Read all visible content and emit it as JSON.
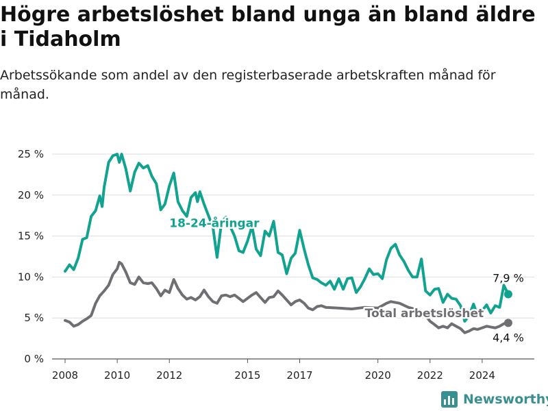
{
  "title": "Högre arbetslöshet bland unga än bland äldre i Tidaholm",
  "subtitle": "Arbetssökande som andel av den registerbaserade arbetskraften månad för månad.",
  "brand": {
    "name": "Newsworthy",
    "icon": "newsworthy-logo-icon",
    "color": "#3a8f8f"
  },
  "chart_data": {
    "type": "line",
    "ylim": [
      0,
      25
    ],
    "yticks": [
      0,
      5,
      10,
      15,
      20,
      25
    ],
    "ytick_labels": [
      "0 %",
      "5 %",
      "10 %",
      "15 %",
      "20 %",
      "25 %"
    ],
    "xticks": [
      2008,
      2010,
      2012,
      2015,
      2017,
      2020,
      2022,
      2024
    ],
    "xtick_labels": [
      "2008",
      "2010",
      "2012",
      "2015",
      "2017",
      "2020",
      "2022",
      "2024"
    ],
    "grid": "horizontal",
    "series": [
      {
        "name": "18-24-åringar",
        "color": "#12a290",
        "end_label": "7,9 %",
        "points": [
          [
            2008.0,
            10.7
          ],
          [
            2008.17,
            11.5
          ],
          [
            2008.33,
            10.9
          ],
          [
            2008.5,
            12.3
          ],
          [
            2008.67,
            14.6
          ],
          [
            2008.83,
            14.8
          ],
          [
            2009.0,
            17.4
          ],
          [
            2009.17,
            18.1
          ],
          [
            2009.33,
            19.9
          ],
          [
            2009.42,
            18.6
          ],
          [
            2009.5,
            21.0
          ],
          [
            2009.67,
            24.0
          ],
          [
            2009.83,
            24.8
          ],
          [
            2010.0,
            25.0
          ],
          [
            2010.08,
            24.0
          ],
          [
            2010.17,
            25.0
          ],
          [
            2010.33,
            23.2
          ],
          [
            2010.5,
            20.5
          ],
          [
            2010.67,
            22.8
          ],
          [
            2010.83,
            23.9
          ],
          [
            2011.0,
            23.3
          ],
          [
            2011.17,
            23.6
          ],
          [
            2011.33,
            22.3
          ],
          [
            2011.5,
            21.4
          ],
          [
            2011.67,
            18.2
          ],
          [
            2011.83,
            18.9
          ],
          [
            2012.0,
            21.1
          ],
          [
            2012.17,
            22.7
          ],
          [
            2012.33,
            19.2
          ],
          [
            2012.5,
            18.1
          ],
          [
            2012.67,
            17.4
          ],
          [
            2012.83,
            19.7
          ],
          [
            2013.0,
            20.3
          ],
          [
            2013.08,
            19.2
          ],
          [
            2013.17,
            20.4
          ],
          [
            2013.33,
            18.9
          ],
          [
            2013.5,
            17.5
          ],
          [
            2013.67,
            16.1
          ],
          [
            2013.83,
            12.4
          ],
          [
            2014.0,
            16.7
          ],
          [
            2014.17,
            17.3
          ],
          [
            2014.33,
            16.2
          ],
          [
            2014.5,
            15.0
          ],
          [
            2014.67,
            13.2
          ],
          [
            2014.83,
            13.0
          ],
          [
            2015.0,
            14.4
          ],
          [
            2015.17,
            16.2
          ],
          [
            2015.33,
            13.4
          ],
          [
            2015.5,
            12.6
          ],
          [
            2015.67,
            15.6
          ],
          [
            2015.83,
            15.0
          ],
          [
            2016.0,
            16.8
          ],
          [
            2016.17,
            13.0
          ],
          [
            2016.33,
            12.7
          ],
          [
            2016.5,
            10.4
          ],
          [
            2016.67,
            12.3
          ],
          [
            2016.83,
            12.9
          ],
          [
            2017.0,
            15.7
          ],
          [
            2017.17,
            13.4
          ],
          [
            2017.33,
            11.5
          ],
          [
            2017.5,
            9.9
          ],
          [
            2017.67,
            9.7
          ],
          [
            2017.83,
            9.3
          ],
          [
            2018.0,
            9.0
          ],
          [
            2018.17,
            9.5
          ],
          [
            2018.33,
            8.5
          ],
          [
            2018.5,
            9.8
          ],
          [
            2018.67,
            8.5
          ],
          [
            2018.83,
            9.8
          ],
          [
            2019.0,
            9.9
          ],
          [
            2019.17,
            8.1
          ],
          [
            2019.33,
            8.8
          ],
          [
            2019.5,
            9.8
          ],
          [
            2019.67,
            11.0
          ],
          [
            2019.83,
            10.3
          ],
          [
            2020.0,
            10.4
          ],
          [
            2020.17,
            9.8
          ],
          [
            2020.33,
            12.1
          ],
          [
            2020.5,
            13.5
          ],
          [
            2020.67,
            14.0
          ],
          [
            2020.83,
            12.7
          ],
          [
            2021.0,
            11.9
          ],
          [
            2021.17,
            10.8
          ],
          [
            2021.33,
            10.0
          ],
          [
            2021.5,
            10.0
          ],
          [
            2021.67,
            12.2
          ],
          [
            2021.83,
            8.3
          ],
          [
            2022.0,
            7.8
          ],
          [
            2022.17,
            8.5
          ],
          [
            2022.33,
            8.6
          ],
          [
            2022.5,
            6.9
          ],
          [
            2022.67,
            7.9
          ],
          [
            2022.83,
            7.4
          ],
          [
            2023.0,
            7.3
          ],
          [
            2023.17,
            6.5
          ],
          [
            2023.33,
            4.6
          ],
          [
            2023.5,
            5.3
          ],
          [
            2023.67,
            6.7
          ],
          [
            2023.83,
            5.2
          ],
          [
            2024.0,
            5.9
          ],
          [
            2024.17,
            6.6
          ],
          [
            2024.33,
            5.6
          ],
          [
            2024.5,
            6.5
          ],
          [
            2024.67,
            6.3
          ],
          [
            2024.83,
            9.0
          ],
          [
            2025.0,
            7.9
          ]
        ]
      },
      {
        "name": "Total arbetslöshet",
        "color": "#6e6e73",
        "end_label": "4,4 %",
        "points": [
          [
            2008.0,
            4.7
          ],
          [
            2008.17,
            4.5
          ],
          [
            2008.33,
            4.0
          ],
          [
            2008.5,
            4.2
          ],
          [
            2008.67,
            4.6
          ],
          [
            2008.83,
            4.9
          ],
          [
            2009.0,
            5.3
          ],
          [
            2009.17,
            6.8
          ],
          [
            2009.33,
            7.7
          ],
          [
            2009.5,
            8.3
          ],
          [
            2009.67,
            9.0
          ],
          [
            2009.83,
            10.3
          ],
          [
            2010.0,
            11.0
          ],
          [
            2010.08,
            11.8
          ],
          [
            2010.17,
            11.6
          ],
          [
            2010.33,
            10.6
          ],
          [
            2010.5,
            9.3
          ],
          [
            2010.67,
            9.1
          ],
          [
            2010.83,
            10.0
          ],
          [
            2011.0,
            9.3
          ],
          [
            2011.17,
            9.2
          ],
          [
            2011.33,
            9.3
          ],
          [
            2011.5,
            8.6
          ],
          [
            2011.67,
            7.7
          ],
          [
            2011.83,
            8.4
          ],
          [
            2012.0,
            8.1
          ],
          [
            2012.17,
            9.7
          ],
          [
            2012.33,
            8.6
          ],
          [
            2012.5,
            7.8
          ],
          [
            2012.67,
            7.3
          ],
          [
            2012.83,
            7.5
          ],
          [
            2013.0,
            7.2
          ],
          [
            2013.17,
            7.6
          ],
          [
            2013.33,
            8.4
          ],
          [
            2013.5,
            7.6
          ],
          [
            2013.67,
            7.0
          ],
          [
            2013.83,
            6.8
          ],
          [
            2014.0,
            7.7
          ],
          [
            2014.17,
            7.8
          ],
          [
            2014.33,
            7.6
          ],
          [
            2014.5,
            7.8
          ],
          [
            2014.67,
            7.4
          ],
          [
            2014.83,
            7.0
          ],
          [
            2015.0,
            7.4
          ],
          [
            2015.17,
            7.8
          ],
          [
            2015.33,
            8.1
          ],
          [
            2015.5,
            7.5
          ],
          [
            2015.67,
            6.9
          ],
          [
            2015.83,
            7.5
          ],
          [
            2016.0,
            7.6
          ],
          [
            2016.17,
            8.3
          ],
          [
            2016.33,
            7.8
          ],
          [
            2016.5,
            7.2
          ],
          [
            2016.67,
            6.6
          ],
          [
            2016.83,
            7.0
          ],
          [
            2017.0,
            7.2
          ],
          [
            2017.17,
            6.8
          ],
          [
            2017.33,
            6.2
          ],
          [
            2017.5,
            6.0
          ],
          [
            2017.67,
            6.4
          ],
          [
            2017.83,
            6.5
          ],
          [
            2018.0,
            6.3
          ],
          [
            2018.5,
            6.2
          ],
          [
            2019.0,
            6.1
          ],
          [
            2019.5,
            6.3
          ],
          [
            2020.0,
            6.2
          ],
          [
            2020.33,
            6.8
          ],
          [
            2020.5,
            7.0
          ],
          [
            2020.83,
            6.8
          ],
          [
            2021.17,
            6.3
          ],
          [
            2021.5,
            6.0
          ],
          [
            2021.83,
            5.3
          ],
          [
            2022.0,
            4.6
          ],
          [
            2022.17,
            4.2
          ],
          [
            2022.33,
            3.8
          ],
          [
            2022.5,
            4.0
          ],
          [
            2022.67,
            3.8
          ],
          [
            2022.83,
            4.3
          ],
          [
            2023.0,
            4.0
          ],
          [
            2023.17,
            3.7
          ],
          [
            2023.33,
            3.2
          ],
          [
            2023.5,
            3.4
          ],
          [
            2023.67,
            3.7
          ],
          [
            2023.83,
            3.6
          ],
          [
            2024.0,
            3.8
          ],
          [
            2024.17,
            4.0
          ],
          [
            2024.33,
            3.9
          ],
          [
            2024.5,
            3.8
          ],
          [
            2024.67,
            4.0
          ],
          [
            2024.83,
            4.3
          ],
          [
            2025.0,
            4.4
          ]
        ]
      }
    ]
  }
}
